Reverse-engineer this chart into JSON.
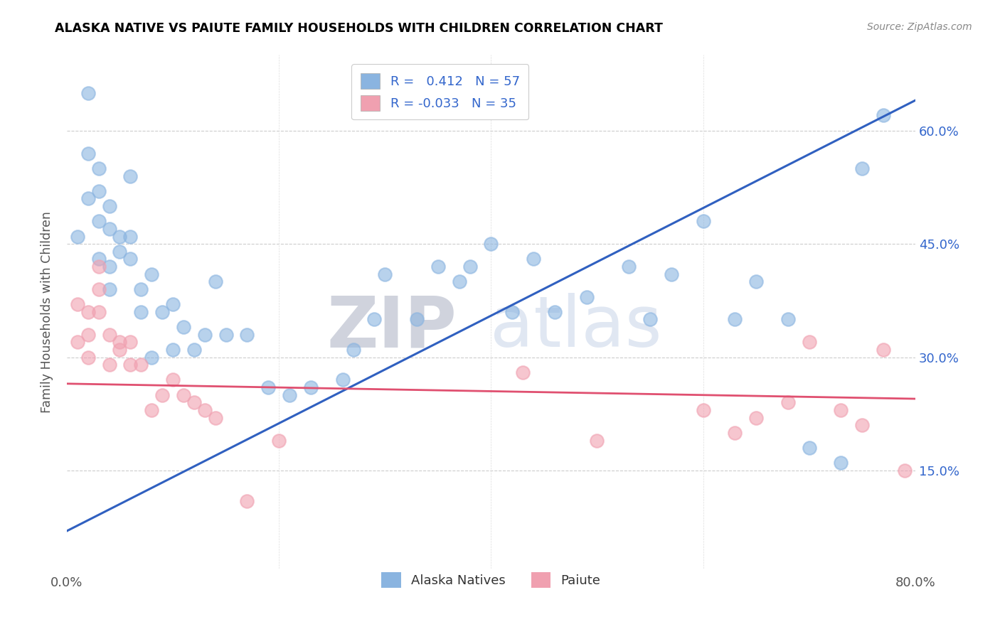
{
  "title": "ALASKA NATIVE VS PAIUTE FAMILY HOUSEHOLDS WITH CHILDREN CORRELATION CHART",
  "source": "Source: ZipAtlas.com",
  "ylabel": "Family Households with Children",
  "xlim": [
    0.0,
    0.8
  ],
  "ylim": [
    0.02,
    0.7
  ],
  "ytick_positions": [
    0.15,
    0.3,
    0.45,
    0.6
  ],
  "ytick_labels": [
    "15.0%",
    "30.0%",
    "45.0%",
    "60.0%"
  ],
  "xtick_positions": [
    0.0,
    0.1,
    0.2,
    0.3,
    0.4,
    0.5,
    0.6,
    0.7,
    0.8
  ],
  "xtick_labels": [
    "0.0%",
    "",
    "",
    "",
    "",
    "",
    "",
    "",
    "80.0%"
  ],
  "blue_color": "#8ab4e0",
  "pink_color": "#f0a0b0",
  "blue_line_color": "#3060c0",
  "pink_line_color": "#e05070",
  "blue_trendline_x": [
    0.0,
    0.8
  ],
  "blue_trendline_y": [
    0.07,
    0.64
  ],
  "pink_trendline_x": [
    0.0,
    0.8
  ],
  "pink_trendline_y": [
    0.265,
    0.245
  ],
  "alaska_x": [
    0.01,
    0.02,
    0.02,
    0.02,
    0.03,
    0.03,
    0.03,
    0.03,
    0.04,
    0.04,
    0.04,
    0.04,
    0.05,
    0.05,
    0.06,
    0.06,
    0.06,
    0.07,
    0.07,
    0.08,
    0.08,
    0.09,
    0.1,
    0.1,
    0.11,
    0.12,
    0.13,
    0.14,
    0.15,
    0.17,
    0.19,
    0.21,
    0.23,
    0.26,
    0.27,
    0.29,
    0.3,
    0.33,
    0.35,
    0.37,
    0.38,
    0.4,
    0.42,
    0.44,
    0.46,
    0.49,
    0.53,
    0.55,
    0.57,
    0.6,
    0.63,
    0.65,
    0.68,
    0.7,
    0.73,
    0.75,
    0.77
  ],
  "alaska_y": [
    0.46,
    0.65,
    0.57,
    0.51,
    0.55,
    0.52,
    0.48,
    0.43,
    0.5,
    0.47,
    0.42,
    0.39,
    0.46,
    0.44,
    0.46,
    0.54,
    0.43,
    0.39,
    0.36,
    0.3,
    0.41,
    0.36,
    0.31,
    0.37,
    0.34,
    0.31,
    0.33,
    0.4,
    0.33,
    0.33,
    0.26,
    0.25,
    0.26,
    0.27,
    0.31,
    0.35,
    0.41,
    0.35,
    0.42,
    0.4,
    0.42,
    0.45,
    0.36,
    0.43,
    0.36,
    0.38,
    0.42,
    0.35,
    0.41,
    0.48,
    0.35,
    0.4,
    0.35,
    0.18,
    0.16,
    0.55,
    0.62
  ],
  "paiute_x": [
    0.01,
    0.01,
    0.02,
    0.02,
    0.02,
    0.03,
    0.03,
    0.03,
    0.04,
    0.04,
    0.05,
    0.05,
    0.06,
    0.06,
    0.07,
    0.08,
    0.09,
    0.1,
    0.11,
    0.12,
    0.13,
    0.14,
    0.17,
    0.2,
    0.43,
    0.5,
    0.6,
    0.63,
    0.65,
    0.68,
    0.7,
    0.73,
    0.75,
    0.77,
    0.79
  ],
  "paiute_y": [
    0.37,
    0.32,
    0.36,
    0.33,
    0.3,
    0.42,
    0.39,
    0.36,
    0.33,
    0.29,
    0.32,
    0.31,
    0.29,
    0.32,
    0.29,
    0.23,
    0.25,
    0.27,
    0.25,
    0.24,
    0.23,
    0.22,
    0.11,
    0.19,
    0.28,
    0.19,
    0.23,
    0.2,
    0.22,
    0.24,
    0.32,
    0.23,
    0.21,
    0.31,
    0.15
  ]
}
